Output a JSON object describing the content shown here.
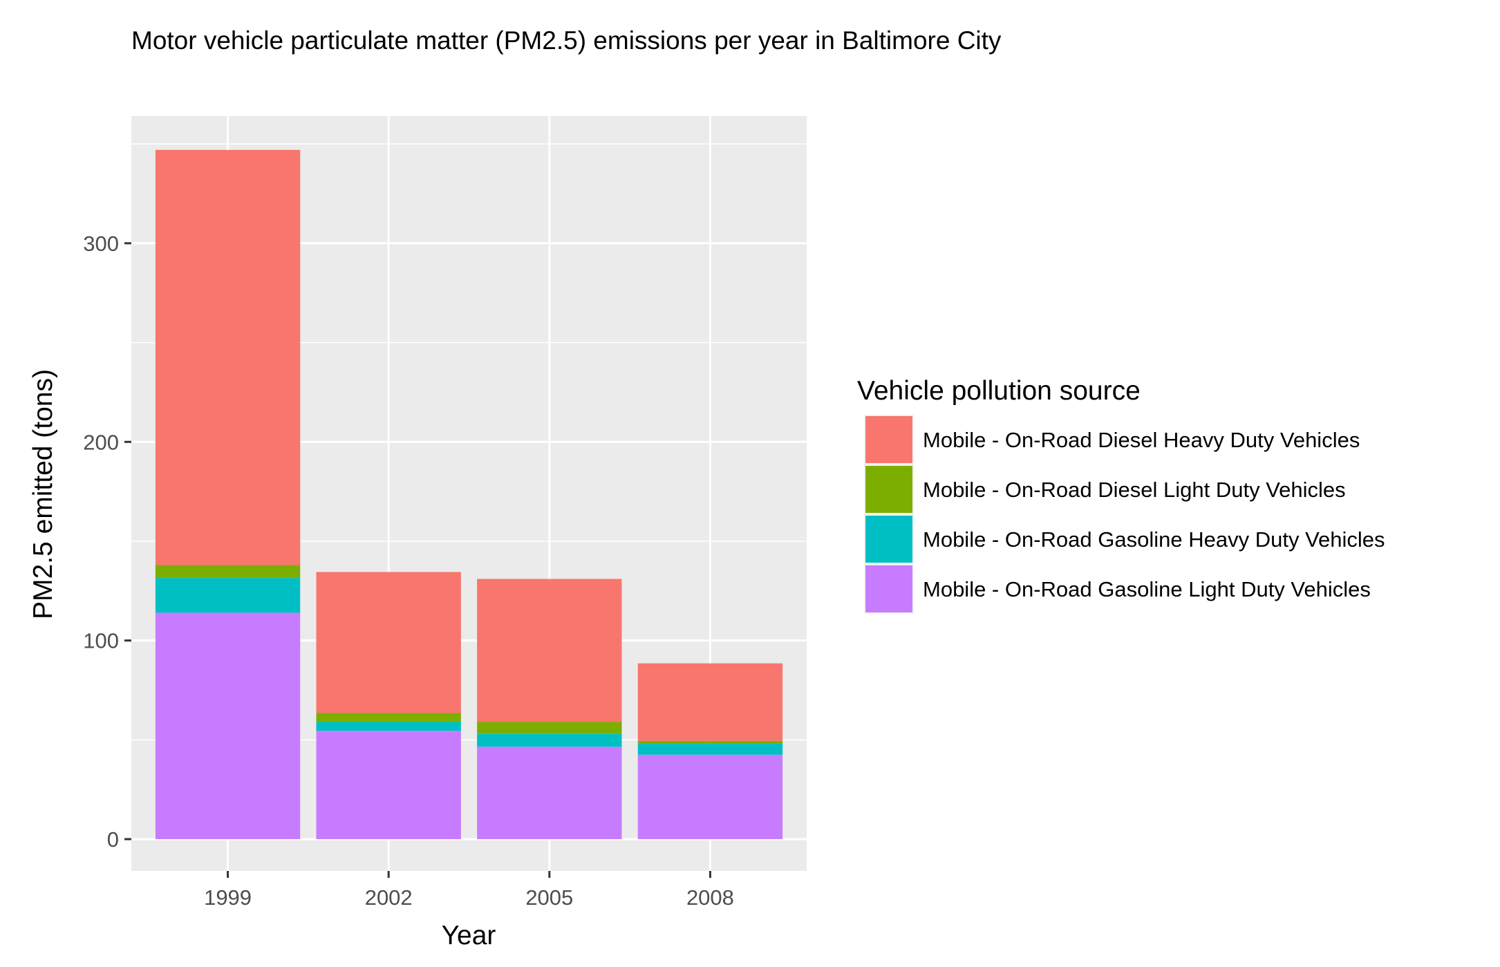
{
  "chart_data": {
    "type": "bar",
    "stacked": true,
    "title": "Motor vehicle particulate matter (PM2.5) emissions per year in Baltimore City",
    "xlabel": "Year",
    "ylabel": "PM2.5 emitted (tons)",
    "categories": [
      "1999",
      "2002",
      "2005",
      "2008"
    ],
    "ylim": [
      -16,
      364
    ],
    "yticks": [
      0,
      100,
      200,
      300
    ],
    "yticks_labels": [
      "0",
      "100",
      "200",
      "300"
    ],
    "grid": true,
    "legend_title": "Vehicle pollution source",
    "legend_position": "right",
    "series": [
      {
        "name": "Mobile - On-Road Gasoline Light Duty Vehicles",
        "color": "#C77CFF",
        "values": [
          114,
          54.5,
          46.5,
          42.5
        ]
      },
      {
        "name": "Mobile - On-Road Gasoline Heavy Duty Vehicles",
        "color": "#00BFC4",
        "values": [
          17.5,
          4.5,
          6.5,
          5.5
        ]
      },
      {
        "name": "Mobile - On-Road Diesel Light Duty Vehicles",
        "color": "#7CAE00",
        "values": [
          6.5,
          4.5,
          6,
          1.5
        ]
      },
      {
        "name": "Mobile - On-Road Diesel Heavy Duty Vehicles",
        "color": "#F8766D",
        "values": [
          209,
          71,
          72,
          39
        ]
      }
    ]
  }
}
